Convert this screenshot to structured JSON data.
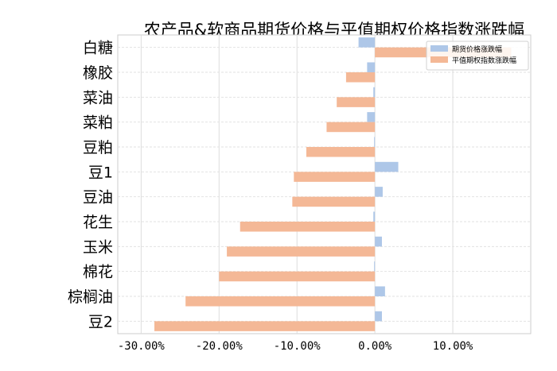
{
  "chart_data": {
    "type": "bar",
    "orientation": "horizontal",
    "title": "农产品&软商品期货价格与平值期权价格指数涨跌幅",
    "categories": [
      "白糖",
      "橡胶",
      "菜油",
      "菜粕",
      "豆粕",
      "豆1",
      "豆油",
      "花生",
      "玉米",
      "棉花",
      "棕榈油",
      "豆2"
    ],
    "series": [
      {
        "name": "期货价格涨跌幅",
        "color": "#aec7e8",
        "values": [
          -2.1,
          -1.0,
          -0.2,
          -1.0,
          -0.1,
          3.0,
          1.0,
          -0.2,
          0.9,
          -0.1,
          1.3,
          0.9
        ]
      },
      {
        "name": "平值期权指数涨跌幅",
        "color": "#f4b896",
        "values": [
          17.5,
          -3.7,
          -4.9,
          -6.2,
          -8.8,
          -10.4,
          -10.6,
          -17.3,
          -19.0,
          -20.0,
          -24.3,
          -28.3
        ]
      }
    ],
    "xlim": [
      -33,
      20
    ],
    "xticks": [
      -30,
      -20,
      -10,
      0,
      10
    ],
    "xtick_labels": [
      "-30.00%",
      "-20.00%",
      "-10.00%",
      "0.00%",
      "10.00%"
    ],
    "grid": true,
    "legend": "top-right"
  }
}
